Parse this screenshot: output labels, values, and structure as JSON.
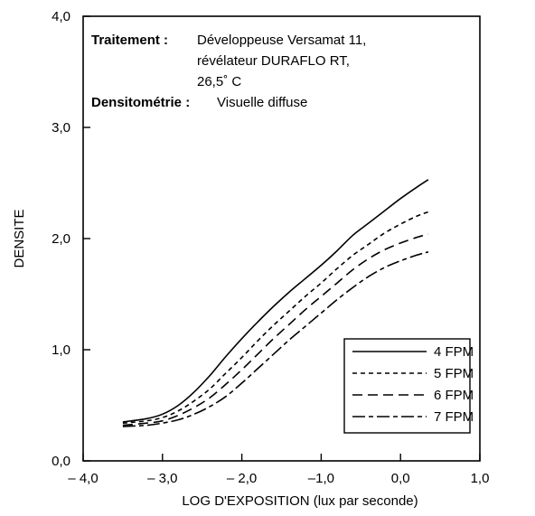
{
  "chart_data": {
    "type": "line",
    "xlabel": "LOG D'EXPOSITION (lux par seconde)",
    "ylabel": "DENSITE",
    "xlim": [
      -4.0,
      1.0
    ],
    "ylim": [
      0.0,
      4.0
    ],
    "x_ticks": [
      -4.0,
      -3.0,
      -2.0,
      -1.0,
      0.0,
      1.0
    ],
    "x_tick_labels": [
      "– 4,0",
      "– 3,0",
      "– 2,0",
      "–1,0",
      "0,0",
      "1,0"
    ],
    "y_ticks": [
      0.0,
      1.0,
      2.0,
      3.0,
      4.0
    ],
    "y_tick_labels": [
      "0,0",
      "1,0",
      "2,0",
      "3,0",
      "4,0"
    ],
    "grid": false,
    "legend_position": "bottom-right",
    "annotations": [
      {
        "label": "Traitement :",
        "lines": [
          "Développeuse Versamat 11,",
          "révélateur DURAFLO RT,",
          "26,5˚ C"
        ]
      },
      {
        "label": "Densitométrie :",
        "lines": [
          "Visuelle diffuse"
        ]
      }
    ],
    "series": [
      {
        "name": "4 FPM",
        "dash": "solid",
        "x": [
          -3.5,
          -3.2,
          -3.0,
          -2.8,
          -2.6,
          -2.4,
          -2.2,
          -2.0,
          -1.8,
          -1.6,
          -1.4,
          -1.2,
          -1.0,
          -0.8,
          -0.6,
          -0.4,
          -0.2,
          0.0,
          0.2,
          0.35
        ],
        "y": [
          0.35,
          0.38,
          0.42,
          0.5,
          0.62,
          0.77,
          0.94,
          1.1,
          1.25,
          1.39,
          1.52,
          1.64,
          1.76,
          1.89,
          2.03,
          2.14,
          2.25,
          2.36,
          2.46,
          2.53
        ]
      },
      {
        "name": "5 FPM",
        "dash": "short",
        "x": [
          -3.5,
          -3.2,
          -3.0,
          -2.8,
          -2.6,
          -2.4,
          -2.2,
          -2.0,
          -1.8,
          -1.6,
          -1.4,
          -1.2,
          -1.0,
          -0.8,
          -0.6,
          -0.4,
          -0.2,
          0.0,
          0.2,
          0.35
        ],
        "y": [
          0.34,
          0.36,
          0.39,
          0.45,
          0.54,
          0.65,
          0.79,
          0.93,
          1.08,
          1.22,
          1.35,
          1.48,
          1.6,
          1.73,
          1.85,
          1.95,
          2.05,
          2.13,
          2.2,
          2.24
        ]
      },
      {
        "name": "6 FPM",
        "dash": "long",
        "x": [
          -3.5,
          -3.2,
          -3.0,
          -2.8,
          -2.6,
          -2.4,
          -2.2,
          -2.0,
          -1.8,
          -1.6,
          -1.4,
          -1.2,
          -1.0,
          -0.8,
          -0.6,
          -0.4,
          -0.2,
          0.0,
          0.2,
          0.35
        ],
        "y": [
          0.32,
          0.34,
          0.36,
          0.41,
          0.48,
          0.57,
          0.69,
          0.82,
          0.96,
          1.1,
          1.23,
          1.36,
          1.48,
          1.6,
          1.72,
          1.82,
          1.9,
          1.96,
          2.01,
          2.04
        ]
      },
      {
        "name": "7 FPM",
        "dash": "longshort",
        "x": [
          -3.5,
          -3.2,
          -3.0,
          -2.8,
          -2.6,
          -2.4,
          -2.2,
          -2.0,
          -1.8,
          -1.6,
          -1.4,
          -1.2,
          -1.0,
          -0.8,
          -0.6,
          -0.4,
          -0.2,
          0.0,
          0.2,
          0.35
        ],
        "y": [
          0.31,
          0.32,
          0.34,
          0.37,
          0.42,
          0.49,
          0.58,
          0.7,
          0.83,
          0.96,
          1.09,
          1.21,
          1.33,
          1.45,
          1.56,
          1.66,
          1.74,
          1.8,
          1.85,
          1.88
        ]
      }
    ]
  }
}
